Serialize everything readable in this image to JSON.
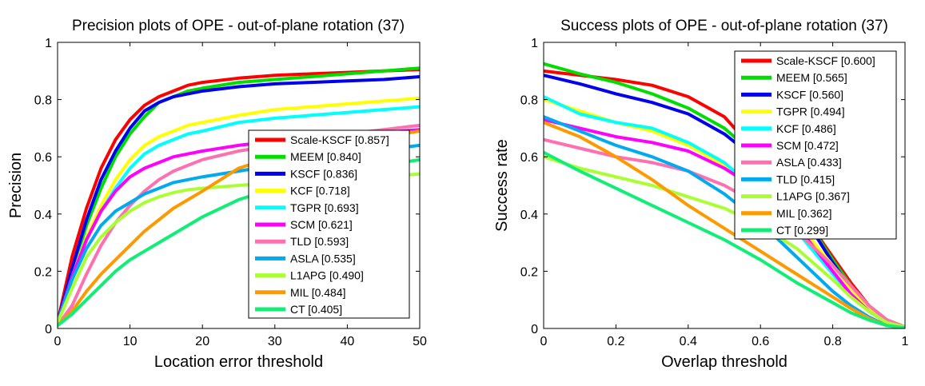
{
  "chart_data": [
    {
      "type": "line",
      "title": "Precision plots of OPE - out-of-plane rotation (37)",
      "xlabel": "Location error threshold",
      "ylabel": "Precision",
      "xlim": [
        0,
        50
      ],
      "ylim": [
        0,
        1
      ],
      "xticks": [
        0,
        10,
        20,
        30,
        40,
        50
      ],
      "yticks": [
        0,
        0.2,
        0.4,
        0.6,
        0.8,
        1
      ],
      "ytick_labels": [
        "0",
        "0.2",
        "0.4",
        "0.6",
        "0.8",
        "1"
      ],
      "legend_position": "lower-right",
      "grid": false,
      "x": [
        0,
        2,
        4,
        6,
        8,
        10,
        12,
        14,
        16,
        18,
        20,
        25,
        30,
        35,
        40,
        45,
        50
      ],
      "series": [
        {
          "name": "Scale-KSCF [0.857]",
          "color": "#ff0000",
          "values": [
            0.02,
            0.25,
            0.42,
            0.56,
            0.66,
            0.73,
            0.78,
            0.81,
            0.83,
            0.85,
            0.86,
            0.875,
            0.885,
            0.89,
            0.895,
            0.9,
            0.905
          ]
        },
        {
          "name": "MEEM [0.840]",
          "color": "#00dd00",
          "values": [
            0.02,
            0.2,
            0.36,
            0.49,
            0.6,
            0.68,
            0.74,
            0.79,
            0.81,
            0.83,
            0.84,
            0.86,
            0.87,
            0.88,
            0.89,
            0.9,
            0.91
          ]
        },
        {
          "name": "KSCF [0.836]",
          "color": "#0000ee",
          "values": [
            0.02,
            0.21,
            0.38,
            0.52,
            0.62,
            0.7,
            0.76,
            0.79,
            0.81,
            0.82,
            0.83,
            0.845,
            0.855,
            0.86,
            0.865,
            0.87,
            0.88
          ]
        },
        {
          "name": "KCF [0.718]",
          "color": "#ffff00",
          "values": [
            0.02,
            0.18,
            0.32,
            0.43,
            0.52,
            0.59,
            0.64,
            0.67,
            0.69,
            0.71,
            0.72,
            0.745,
            0.765,
            0.775,
            0.785,
            0.795,
            0.805
          ]
        },
        {
          "name": "TGPR [0.693]",
          "color": "#00ffff",
          "values": [
            0.02,
            0.18,
            0.31,
            0.41,
            0.49,
            0.56,
            0.61,
            0.64,
            0.66,
            0.68,
            0.69,
            0.72,
            0.735,
            0.745,
            0.755,
            0.765,
            0.775
          ]
        },
        {
          "name": "SCM [0.621]",
          "color": "#ff00ff",
          "values": [
            0.02,
            0.18,
            0.31,
            0.41,
            0.48,
            0.53,
            0.56,
            0.58,
            0.6,
            0.61,
            0.62,
            0.64,
            0.655,
            0.665,
            0.675,
            0.685,
            0.695
          ]
        },
        {
          "name": "TLD [0.593]",
          "color": "#ff70b0",
          "values": [
            0.01,
            0.08,
            0.19,
            0.29,
            0.37,
            0.43,
            0.48,
            0.52,
            0.55,
            0.57,
            0.59,
            0.62,
            0.64,
            0.66,
            0.68,
            0.695,
            0.71
          ]
        },
        {
          "name": "ASLA [0.535]",
          "color": "#00aaee",
          "values": [
            0.02,
            0.17,
            0.28,
            0.36,
            0.41,
            0.44,
            0.47,
            0.49,
            0.51,
            0.52,
            0.53,
            0.55,
            0.57,
            0.59,
            0.61,
            0.625,
            0.64
          ]
        },
        {
          "name": "L1APG [0.490]",
          "color": "#aaff33",
          "values": [
            0.02,
            0.14,
            0.25,
            0.32,
            0.37,
            0.41,
            0.44,
            0.46,
            0.475,
            0.485,
            0.49,
            0.5,
            0.51,
            0.515,
            0.52,
            0.53,
            0.54
          ]
        },
        {
          "name": "MIL [0.484]",
          "color": "#ff9900",
          "values": [
            0.01,
            0.06,
            0.13,
            0.19,
            0.24,
            0.29,
            0.34,
            0.38,
            0.42,
            0.45,
            0.48,
            0.56,
            0.6,
            0.63,
            0.65,
            0.67,
            0.69
          ]
        },
        {
          "name": "CT [0.405]",
          "color": "#11ee77",
          "values": [
            0.01,
            0.05,
            0.1,
            0.15,
            0.2,
            0.24,
            0.27,
            0.3,
            0.33,
            0.36,
            0.39,
            0.45,
            0.49,
            0.52,
            0.55,
            0.57,
            0.59
          ]
        }
      ]
    },
    {
      "type": "line",
      "title": "Success plots of OPE - out-of-plane rotation (37)",
      "xlabel": "Overlap threshold",
      "ylabel": "Success rate",
      "xlim": [
        0,
        1
      ],
      "ylim": [
        0,
        1
      ],
      "xticks": [
        0,
        0.2,
        0.4,
        0.6,
        0.8,
        1
      ],
      "xtick_labels": [
        "0",
        "0.2",
        "0.4",
        "0.6",
        "0.8",
        "1"
      ],
      "yticks": [
        0,
        0.2,
        0.4,
        0.6,
        0.8,
        1
      ],
      "ytick_labels": [
        "0",
        "0.2",
        "0.4",
        "0.6",
        "0.8",
        "1"
      ],
      "legend_position": "top-right",
      "grid": false,
      "x": [
        0,
        0.1,
        0.2,
        0.3,
        0.4,
        0.5,
        0.6,
        0.7,
        0.8,
        0.85,
        0.9,
        0.95,
        1
      ],
      "series": [
        {
          "name": "Scale-KSCF [0.600]",
          "color": "#ff0000",
          "values": [
            0.9,
            0.885,
            0.87,
            0.85,
            0.81,
            0.74,
            0.6,
            0.43,
            0.25,
            0.16,
            0.08,
            0.03,
            0.005
          ]
        },
        {
          "name": "MEEM [0.565]",
          "color": "#00dd00",
          "values": [
            0.925,
            0.89,
            0.86,
            0.82,
            0.77,
            0.7,
            0.59,
            0.43,
            0.24,
            0.15,
            0.08,
            0.03,
            0.005
          ]
        },
        {
          "name": "KSCF [0.560]",
          "color": "#0000ee",
          "values": [
            0.885,
            0.855,
            0.82,
            0.79,
            0.75,
            0.68,
            0.58,
            0.43,
            0.23,
            0.14,
            0.07,
            0.02,
            0.005
          ]
        },
        {
          "name": "TGPR [0.494]",
          "color": "#ffff00",
          "values": [
            0.8,
            0.76,
            0.72,
            0.69,
            0.64,
            0.57,
            0.48,
            0.37,
            0.22,
            0.14,
            0.07,
            0.02,
            0.005
          ]
        },
        {
          "name": "KCF [0.486]",
          "color": "#00ffff",
          "values": [
            0.81,
            0.75,
            0.72,
            0.7,
            0.65,
            0.58,
            0.47,
            0.34,
            0.19,
            0.12,
            0.06,
            0.02,
            0.005
          ]
        },
        {
          "name": "SCM [0.472]",
          "color": "#ff00ff",
          "values": [
            0.73,
            0.7,
            0.67,
            0.65,
            0.62,
            0.56,
            0.48,
            0.36,
            0.2,
            0.12,
            0.06,
            0.02,
            0.005
          ]
        },
        {
          "name": "ASLA [0.433]",
          "color": "#ff70b0",
          "values": [
            0.66,
            0.63,
            0.6,
            0.58,
            0.55,
            0.5,
            0.43,
            0.34,
            0.22,
            0.15,
            0.08,
            0.03,
            0.005
          ]
        },
        {
          "name": "TLD [0.415]",
          "color": "#00aaee",
          "values": [
            0.74,
            0.69,
            0.64,
            0.6,
            0.55,
            0.47,
            0.37,
            0.25,
            0.13,
            0.08,
            0.04,
            0.01,
            0.003
          ]
        },
        {
          "name": "L1APG [0.367]",
          "color": "#aaff33",
          "values": [
            0.6,
            0.56,
            0.53,
            0.5,
            0.46,
            0.42,
            0.36,
            0.28,
            0.17,
            0.11,
            0.06,
            0.02,
            0.005
          ]
        },
        {
          "name": "MIL [0.362]",
          "color": "#ff9900",
          "values": [
            0.72,
            0.67,
            0.6,
            0.52,
            0.43,
            0.35,
            0.27,
            0.19,
            0.11,
            0.07,
            0.035,
            0.01,
            0.002
          ]
        },
        {
          "name": "CT [0.299]",
          "color": "#11ee77",
          "values": [
            0.615,
            0.55,
            0.49,
            0.43,
            0.37,
            0.31,
            0.24,
            0.16,
            0.09,
            0.055,
            0.03,
            0.01,
            0.002
          ]
        }
      ]
    }
  ]
}
